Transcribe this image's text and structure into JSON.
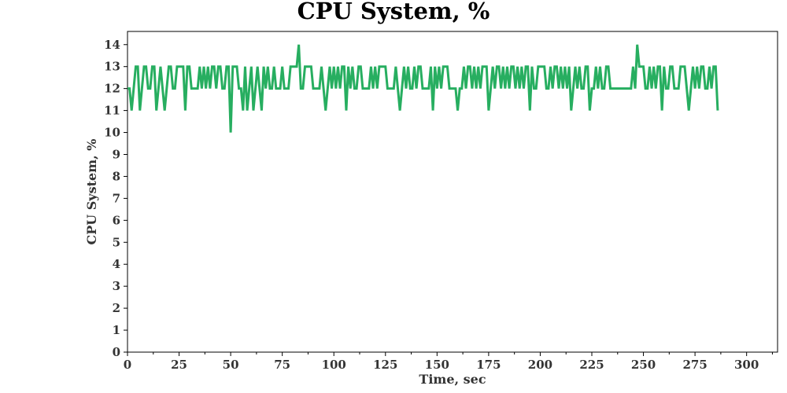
{
  "chart_data": {
    "type": "line",
    "title": "CPU System, %",
    "xlabel": "Time, sec",
    "ylabel": "CPU System, %",
    "xlim": [
      0,
      315
    ],
    "ylim": [
      0,
      14.6
    ],
    "x_ticks": [
      0,
      25,
      50,
      75,
      100,
      125,
      150,
      175,
      200,
      225,
      250,
      275,
      300
    ],
    "y_ticks": [
      0,
      1,
      2,
      3,
      4,
      5,
      6,
      7,
      8,
      9,
      10,
      11,
      12,
      13,
      14
    ],
    "grid": true,
    "colors": {
      "series": "#27ae60"
    },
    "series": [
      {
        "x_start": 0,
        "x_step": 1,
        "values": [
          12,
          12,
          11,
          12,
          13,
          13,
          11,
          12,
          13,
          13,
          12,
          12,
          13,
          13,
          11,
          12,
          13,
          12,
          11,
          12,
          13,
          13,
          12,
          12,
          13,
          13,
          13,
          13,
          11,
          13,
          13,
          12,
          12,
          12,
          12,
          13,
          12,
          13,
          12,
          13,
          12,
          13,
          13,
          12,
          13,
          13,
          12,
          12,
          13,
          13,
          10,
          13,
          13,
          13,
          12,
          12,
          11,
          13,
          11,
          12,
          13,
          11,
          12,
          13,
          12,
          11,
          13,
          12,
          13,
          12,
          12,
          13,
          12,
          12,
          12,
          13,
          12,
          12,
          12,
          13,
          13,
          13,
          13,
          14,
          12,
          12,
          13,
          13,
          13,
          13,
          12,
          12,
          12,
          12,
          13,
          12,
          11,
          12,
          13,
          12,
          13,
          12,
          13,
          12,
          13,
          13,
          11,
          13,
          12,
          13,
          12,
          12,
          13,
          13,
          12,
          12,
          12,
          12,
          13,
          12,
          13,
          12,
          13,
          13,
          13,
          13,
          12,
          12,
          12,
          12,
          13,
          12,
          11,
          12,
          13,
          12,
          13,
          12,
          12,
          13,
          12,
          13,
          13,
          12,
          12,
          12,
          12,
          13,
          11,
          13,
          12,
          13,
          12,
          13,
          13,
          13,
          12,
          12,
          12,
          12,
          11,
          12,
          12,
          13,
          12,
          13,
          13,
          12,
          13,
          12,
          13,
          12,
          13,
          13,
          13,
          11,
          12,
          13,
          12,
          13,
          13,
          12,
          13,
          12,
          13,
          12,
          13,
          13,
          12,
          13,
          12,
          13,
          12,
          13,
          13,
          11,
          13,
          12,
          12,
          13,
          13,
          13,
          13,
          12,
          12,
          13,
          12,
          13,
          13,
          12,
          13,
          12,
          13,
          12,
          13,
          11,
          12,
          13,
          12,
          13,
          12,
          12,
          13,
          13,
          11,
          12,
          12,
          13,
          12,
          13,
          12,
          12,
          13,
          13,
          12,
          12,
          12,
          12,
          12,
          12,
          12,
          12,
          12,
          12,
          12,
          13,
          12,
          14,
          13,
          13,
          13,
          12,
          12,
          13,
          12,
          13,
          12,
          13,
          13,
          11,
          13,
          12,
          12,
          13,
          13,
          12,
          12,
          12,
          13,
          13,
          13,
          12,
          11,
          12,
          13,
          12,
          13,
          12,
          13,
          13,
          12,
          12,
          13,
          12,
          13,
          13,
          11
        ]
      }
    ]
  }
}
